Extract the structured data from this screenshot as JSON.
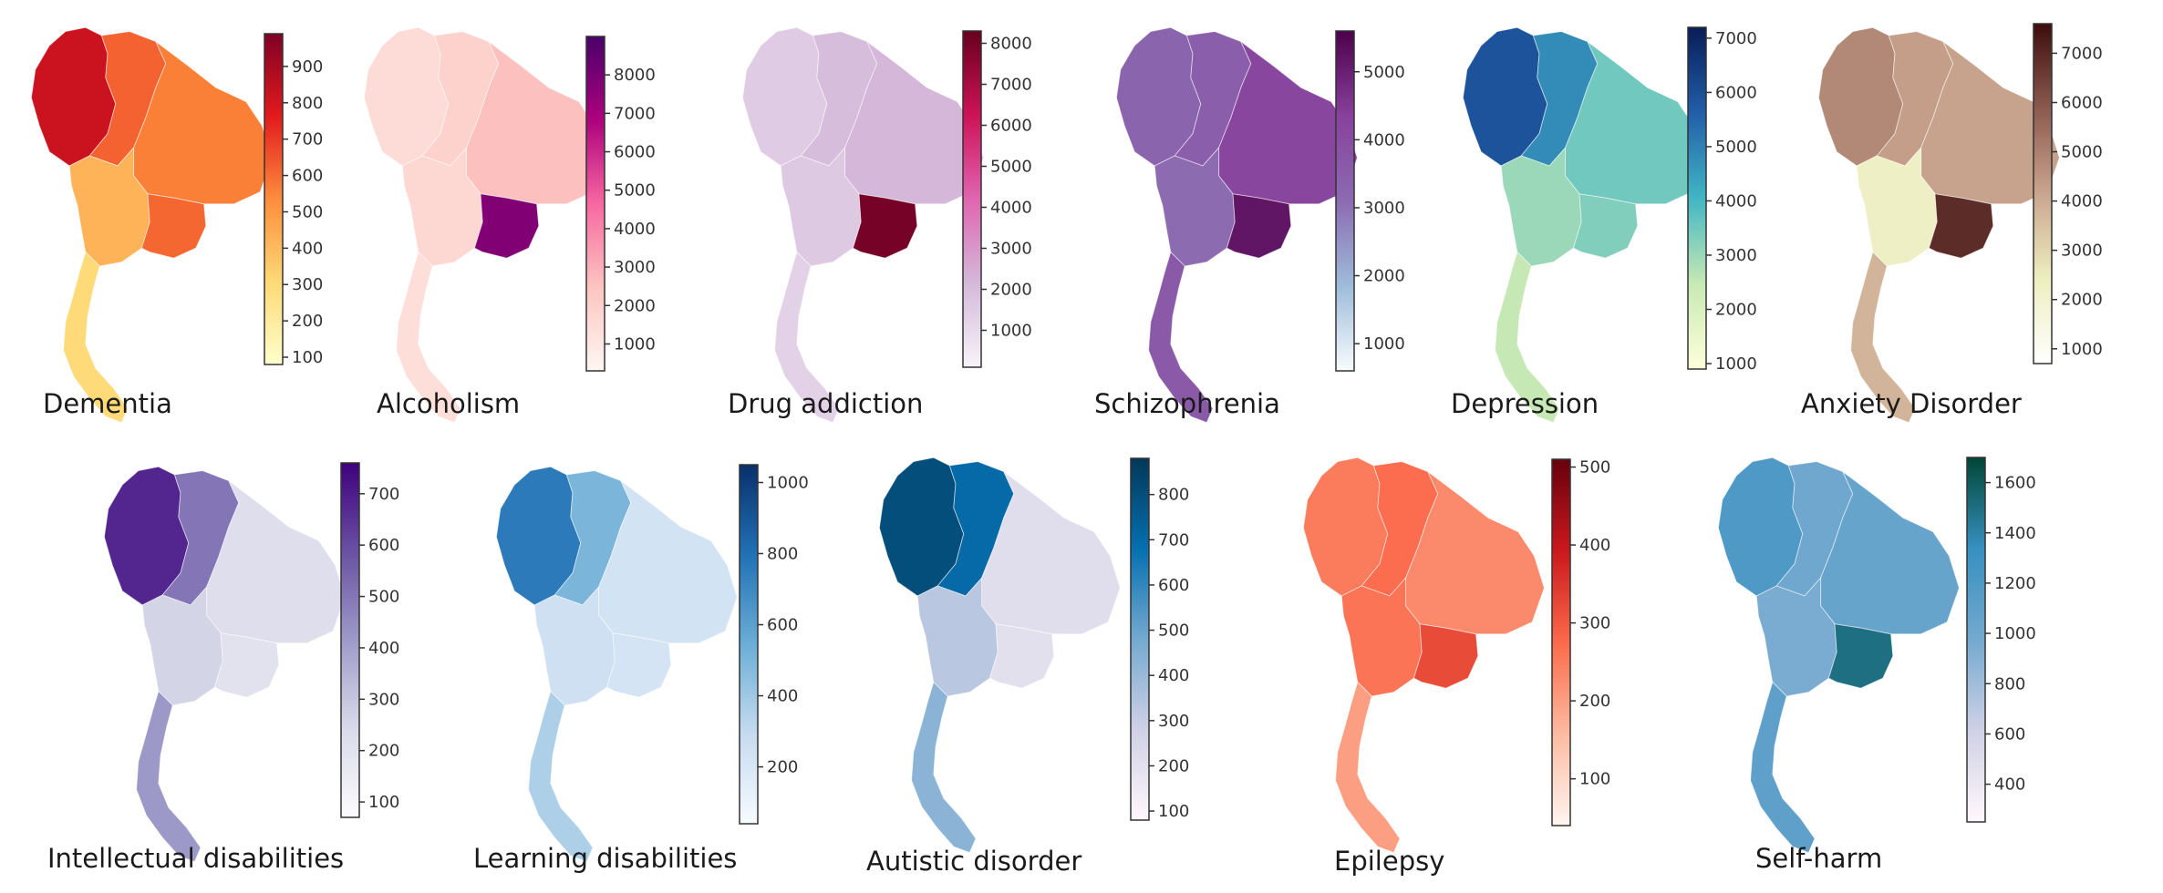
{
  "chart_data": [
    {
      "type": "heatmap",
      "title": "Dementia",
      "cmap": [
        "#ffffcc",
        "#fed976",
        "#fd8d3c",
        "#e31a1c",
        "#800026"
      ],
      "clim": [
        80,
        990
      ],
      "ticks": [
        100,
        200,
        300,
        400,
        500,
        600,
        700,
        800,
        900
      ],
      "regions": {
        "north": 620,
        "northwest": 820,
        "northeast": 560,
        "east": 610,
        "central": 420,
        "south": 300
      }
    },
    {
      "type": "heatmap",
      "title": "Alcoholism",
      "cmap": [
        "#fff7f3",
        "#fcc5c0",
        "#f768a1",
        "#ae017e",
        "#49006a"
      ],
      "clim": [
        300,
        9000
      ],
      "ticks": [
        1000,
        2000,
        3000,
        4000,
        5000,
        6000,
        7000,
        8000
      ],
      "regions": {
        "north": 1900,
        "northwest": 1500,
        "northeast": 2600,
        "east": 7800,
        "central": 1700,
        "south": 1400
      }
    },
    {
      "type": "heatmap",
      "title": "Drug addiction",
      "cmap": [
        "#f7f4f9",
        "#d4b9da",
        "#df65b0",
        "#ce1256",
        "#67001f"
      ],
      "clim": [
        100,
        8300
      ],
      "ticks": [
        1000,
        2000,
        3000,
        4000,
        5000,
        6000,
        7000,
        8000
      ],
      "regions": {
        "north": 2000,
        "northwest": 1500,
        "northeast": 2200,
        "east": 8000,
        "central": 1600,
        "south": 1300
      }
    },
    {
      "type": "heatmap",
      "title": "Schizophrenia",
      "cmap": [
        "#f7fcfd",
        "#9ebcda",
        "#8c6bb1",
        "#88419d",
        "#4d004b"
      ],
      "clim": [
        600,
        5600
      ],
      "ticks": [
        1000,
        2000,
        3000,
        4000,
        5000
      ],
      "regions": {
        "north": 3500,
        "northwest": 3300,
        "northeast": 4200,
        "east": 5200,
        "central": 3100,
        "south": 3600
      }
    },
    {
      "type": "heatmap",
      "title": "Depression",
      "cmap": [
        "#ffffd9",
        "#c7e9b4",
        "#41b6c4",
        "#225ea8",
        "#081d58"
      ],
      "clim": [
        900,
        7200
      ],
      "ticks": [
        1000,
        2000,
        3000,
        4000,
        5000,
        6000,
        7000
      ],
      "regions": {
        "north": 4800,
        "northwest": 5900,
        "northeast": 3500,
        "east": 3300,
        "central": 3000,
        "south": 2500
      }
    },
    {
      "type": "heatmap",
      "title": "Anxiety Disorder",
      "cmap": [
        "#ffffff",
        "#eeeec0",
        "#c9a58f",
        "#8c5a4f",
        "#3c0d0d"
      ],
      "clim": [
        700,
        7600
      ],
      "ticks": [
        1000,
        2000,
        3000,
        4000,
        5000,
        6000,
        7000
      ],
      "regions": {
        "north": 4300,
        "northwest": 4800,
        "northeast": 4200,
        "east": 6900,
        "central": 2300,
        "south": 3800
      }
    },
    {
      "type": "heatmap",
      "title": "Intellectual disabilities",
      "cmap": [
        "#fcfbfd",
        "#dadaeb",
        "#9e9ac8",
        "#6a51a3",
        "#3f007d"
      ],
      "clim": [
        70,
        760
      ],
      "ticks": [
        100,
        200,
        300,
        400,
        500,
        600,
        700
      ],
      "regions": {
        "north": 500,
        "northwest": 680,
        "northeast": 220,
        "east": 200,
        "central": 260,
        "south": 420
      }
    },
    {
      "type": "heatmap",
      "title": "Learning disabilities",
      "cmap": [
        "#f7fbff",
        "#c6dbef",
        "#6baed6",
        "#2171b5",
        "#08306b"
      ],
      "clim": [
        40,
        1050
      ],
      "ticks": [
        200,
        400,
        600,
        800,
        1000
      ],
      "regions": {
        "north": 500,
        "northwest": 760,
        "northeast": 230,
        "east": 220,
        "central": 250,
        "south": 360
      }
    },
    {
      "type": "heatmap",
      "title": "Autistic disorder",
      "cmap": [
        "#fff7fb",
        "#d0d1e6",
        "#74a9cf",
        "#0570b0",
        "#023858"
      ],
      "clim": [
        80,
        880
      ],
      "ticks": [
        100,
        200,
        300,
        400,
        500,
        600,
        700,
        800
      ],
      "regions": {
        "north": 700,
        "northwest": 800,
        "northeast": 210,
        "east": 200,
        "central": 330,
        "south": 430
      }
    },
    {
      "type": "heatmap",
      "title": "Epilepsy",
      "cmap": [
        "#fff5f0",
        "#fcbba1",
        "#fb6a4a",
        "#cb181d",
        "#67000d"
      ],
      "clim": [
        40,
        510
      ],
      "ticks": [
        100,
        200,
        300,
        400,
        500
      ],
      "regions": {
        "north": 270,
        "northwest": 250,
        "northeast": 230,
        "east": 320,
        "central": 260,
        "south": 200
      }
    },
    {
      "type": "heatmap",
      "title": "Self-harm",
      "cmap": [
        "#fff7fb",
        "#d0d1e6",
        "#74a9cf",
        "#3690c0",
        "#014636"
      ],
      "clim": [
        250,
        1700
      ],
      "ticks": [
        400,
        600,
        800,
        1000,
        1200,
        1400,
        1600
      ],
      "regions": {
        "north": 1000,
        "northwest": 1200,
        "northeast": 1050,
        "east": 1500,
        "central": 950,
        "south": 1100
      }
    }
  ]
}
